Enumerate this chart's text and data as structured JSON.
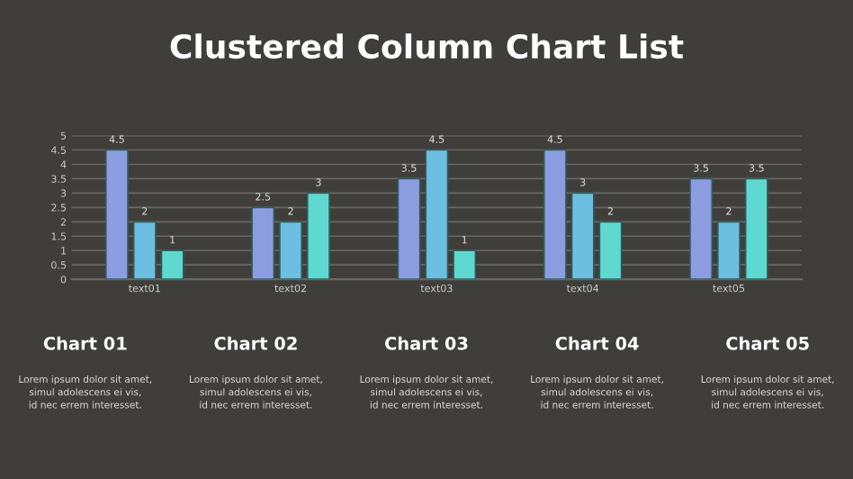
{
  "chart_data": {
    "type": "bar",
    "title": "Clustered Column Chart List",
    "categories": [
      "text01",
      "text02",
      "text03",
      "text04",
      "text05"
    ],
    "series": [
      {
        "color": "#8b9de0",
        "values": [
          4.5,
          2.5,
          3.5,
          4.5,
          3.5
        ]
      },
      {
        "color": "#6cbfe0",
        "values": [
          2,
          2,
          4.5,
          3,
          2
        ]
      },
      {
        "color": "#5fd9d0",
        "values": [
          1,
          3,
          1,
          2,
          3.5
        ]
      }
    ],
    "ylim": [
      0,
      5
    ],
    "yticks": [
      0,
      0.5,
      1,
      1.5,
      2,
      2.5,
      3,
      3.5,
      4,
      4.5,
      5
    ],
    "grid": "y",
    "legend": false,
    "data_labels": true,
    "annotations": [
      "Chart 01",
      "Lorem ipsum dolor sit amet,\nsimul adolescens ei vis,\nid nec errem interesset.",
      "Chart 02",
      "Lorem ipsum dolor sit amet,\nsimul adolescens ei vis,\nid nec errem interesset.",
      "Chart 03",
      "Lorem ipsum dolor sit amet,\nsimul adolescens ei vis,\nid nec errem interesset.",
      "Chart 04",
      "Lorem ipsum dolor sit amet,\nsimul adolescens ei vis,\nid nec errem interesset.",
      "Chart 05",
      "Lorem ipsum dolor sit amet,\nsimul adolescens ei vis,\nid nec errem interesset."
    ]
  }
}
